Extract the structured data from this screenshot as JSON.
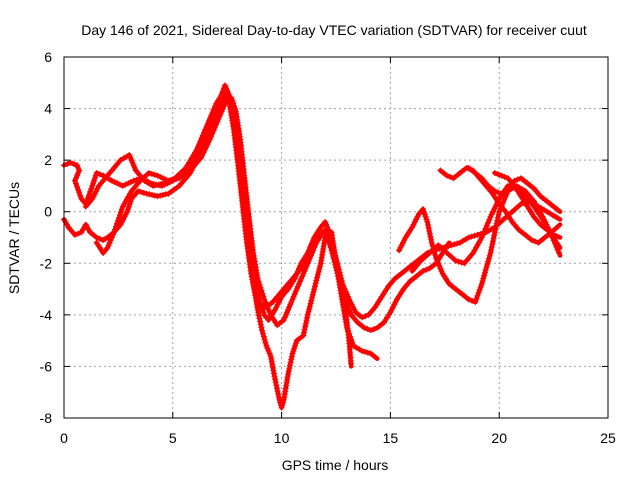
{
  "chart_data": {
    "type": "scatter",
    "title": "Day 146 of 2021, Sidereal Day-to-day VTEC variation (SDTVAR) for receiver cuut",
    "xlabel": "GPS time / hours",
    "ylabel": "SDTVAR / TECUs",
    "xlim": [
      0,
      25
    ],
    "ylim": [
      -8,
      6
    ],
    "xticks": [
      "0",
      "5",
      "10",
      "15",
      "20",
      "25"
    ],
    "yticks": [
      "-8",
      "-6",
      "-4",
      "-2",
      "0",
      "2",
      "4",
      "6"
    ],
    "grid": true,
    "legend": "none",
    "marker": "+",
    "color": "#ff0000",
    "series": [
      {
        "x": [
          0,
          0.3,
          0.6,
          0.7,
          0.5,
          0.8,
          1.0,
          1.3,
          1.5,
          1.8,
          2.2,
          2.7,
          3.2,
          3.6,
          4.0,
          4.5,
          5.0,
          5.5,
          6.0,
          6.5,
          7.0,
          7.4,
          7.7,
          7.9,
          8.1,
          8.3,
          8.5,
          8.7,
          8.9,
          9.1,
          9.3,
          9.5,
          9.7,
          9.9,
          10.0,
          10.1,
          10.3,
          10.5,
          10.7,
          11.0,
          11.2,
          11.5,
          11.8,
          12.0,
          12.3,
          12.6,
          12.9,
          13.1,
          13.2
        ],
        "y": [
          1.8,
          1.9,
          1.8,
          1.6,
          1.2,
          0.5,
          0.3,
          1.0,
          1.5,
          1.4,
          1.2,
          1.0,
          1.2,
          1.3,
          1.1,
          1.0,
          1.2,
          1.5,
          2.0,
          3.0,
          4.0,
          4.9,
          4.3,
          3.0,
          1.5,
          0.0,
          -1.5,
          -2.8,
          -3.8,
          -4.6,
          -5.2,
          -5.6,
          -6.5,
          -7.3,
          -7.6,
          -7.3,
          -6.3,
          -5.5,
          -5.0,
          -4.8,
          -4.0,
          -3.0,
          -2.0,
          -1.0,
          -0.8,
          -2.5,
          -3.5,
          -5.0,
          -6.0
        ]
      },
      {
        "x": [
          0,
          0.2,
          0.5,
          0.8,
          1.0,
          1.2,
          1.5,
          1.8,
          2.0,
          2.3,
          2.6,
          2.9,
          3.1,
          3.4,
          3.8,
          4.3,
          4.8,
          5.3,
          5.8,
          6.3,
          6.8,
          7.2,
          7.5,
          7.8,
          8.0,
          8.2,
          8.4,
          8.6,
          8.8,
          9.0,
          9.2,
          9.4,
          9.7,
          10.0,
          10.3,
          10.6,
          10.9,
          11.2,
          11.5,
          11.8,
          12.0,
          12.2,
          12.4,
          12.6,
          12.8,
          13.0,
          13.3,
          13.7,
          14.1,
          14.4
        ],
        "y": [
          -0.3,
          -0.6,
          -0.9,
          -0.8,
          -0.5,
          -0.8,
          -1.0,
          -1.1,
          -1.0,
          -0.8,
          -0.5,
          0.0,
          0.5,
          0.8,
          0.7,
          0.6,
          0.7,
          1.0,
          1.5,
          2.3,
          3.3,
          4.2,
          4.6,
          3.8,
          2.5,
          1.0,
          -0.5,
          -1.8,
          -2.8,
          -3.5,
          -4.0,
          -4.2,
          -3.8,
          -3.3,
          -3.0,
          -2.6,
          -2.0,
          -1.6,
          -1.0,
          -0.6,
          -0.4,
          -0.8,
          -1.5,
          -2.5,
          -3.5,
          -4.5,
          -5.2,
          -5.4,
          -5.5,
          -5.7
        ]
      },
      {
        "x": [
          1.0,
          1.3,
          1.6,
          1.9,
          2.2,
          2.6,
          3.0,
          3.3,
          3.7,
          4.1,
          4.6,
          5.1,
          5.6,
          6.1,
          6.6,
          7.0,
          7.3,
          7.6,
          7.8,
          8.0,
          8.2,
          8.4,
          8.6,
          8.8,
          9.0,
          9.3,
          9.6,
          9.9,
          10.2,
          10.5,
          10.8,
          11.1,
          11.4,
          11.7,
          12.0,
          12.3,
          12.6,
          12.9,
          13.2,
          13.5,
          13.8,
          14.1,
          14.4,
          14.7,
          15.0,
          15.3,
          15.6,
          15.9,
          16.2,
          16.5,
          16.8,
          17.1,
          17.4,
          17.7
        ],
        "y": [
          0.2,
          0.5,
          1.0,
          1.3,
          1.6,
          2.0,
          2.2,
          1.6,
          1.2,
          1.0,
          1.1,
          1.3,
          1.7,
          2.4,
          3.4,
          4.2,
          4.6,
          4.2,
          3.2,
          1.8,
          0.3,
          -1.2,
          -2.4,
          -3.2,
          -3.6,
          -3.7,
          -3.5,
          -3.2,
          -2.9,
          -2.6,
          -2.3,
          -2.0,
          -1.5,
          -1.0,
          -0.7,
          -1.5,
          -2.5,
          -3.4,
          -4.0,
          -4.3,
          -4.5,
          -4.6,
          -4.5,
          -4.3,
          -3.9,
          -3.4,
          -3.0,
          -2.7,
          -2.5,
          -2.3,
          -2.2,
          -2.0,
          -1.6,
          -1.2
        ]
      },
      {
        "x": [
          1.5,
          1.8,
          2.0,
          2.3,
          2.7,
          3.1,
          3.5,
          3.9,
          4.3,
          4.8,
          5.3,
          5.8,
          6.3,
          6.7,
          7.1,
          7.4,
          7.7,
          7.9,
          8.1,
          8.3,
          8.5,
          8.7,
          8.9,
          9.2,
          9.5,
          9.8,
          10.1,
          10.4,
          10.7,
          11.0,
          11.3,
          11.6,
          11.9,
          12.2,
          12.5,
          12.8,
          13.1,
          13.4,
          13.7,
          14.0,
          14.3,
          14.6,
          14.9,
          15.2,
          15.5,
          15.8,
          16.1,
          16.4,
          16.7,
          17.0,
          17.4,
          17.8,
          18.2,
          18.6,
          19.0,
          19.4,
          19.8,
          20.2,
          20.6,
          21.0,
          21.4,
          21.8,
          22.2,
          22.6,
          22.8
        ],
        "y": [
          -1.2,
          -1.6,
          -1.4,
          -0.8,
          0.2,
          0.8,
          1.2,
          1.5,
          1.4,
          1.2,
          1.3,
          1.6,
          2.1,
          2.8,
          3.6,
          4.2,
          4.4,
          3.9,
          2.8,
          1.3,
          -0.2,
          -1.6,
          -2.6,
          -3.4,
          -4.0,
          -4.4,
          -4.2,
          -3.6,
          -3.0,
          -2.4,
          -1.8,
          -1.2,
          -0.8,
          -1.0,
          -1.8,
          -2.8,
          -3.4,
          -3.9,
          -4.1,
          -4.0,
          -3.7,
          -3.3,
          -2.9,
          -2.6,
          -2.4,
          -2.2,
          -2.0,
          -1.8,
          -1.6,
          -1.5,
          -1.4,
          -1.3,
          -1.2,
          -1.0,
          -0.9,
          -0.8,
          -0.6,
          -0.3,
          0.0,
          0.3,
          0.4,
          0.2,
          0.0,
          -0.2,
          -0.3
        ]
      },
      {
        "x": [
          15.4,
          15.7,
          16.0,
          16.3,
          16.5,
          16.7,
          16.9,
          17.1,
          17.4,
          17.7,
          18.0,
          18.3,
          18.6,
          18.9,
          19.2,
          19.6,
          20.0,
          20.4,
          20.8,
          21.2,
          21.6,
          22.0,
          22.4,
          22.8
        ],
        "y": [
          -1.5,
          -1.0,
          -0.6,
          -0.1,
          0.1,
          -0.4,
          -1.2,
          -1.8,
          -2.4,
          -2.8,
          -3.0,
          -3.2,
          -3.4,
          -3.5,
          -2.8,
          -1.6,
          0.0,
          0.8,
          1.0,
          0.8,
          0.4,
          -0.2,
          -0.9,
          -1.7
        ]
      },
      {
        "x": [
          16.0,
          16.4,
          16.8,
          17.2,
          17.6,
          18.0,
          18.4,
          18.8,
          19.2,
          19.6,
          20.0,
          20.4,
          20.8,
          21.2,
          21.6,
          22.0,
          22.4,
          22.8
        ],
        "y": [
          -2.3,
          -1.9,
          -1.6,
          -1.3,
          -1.6,
          -1.9,
          -2.0,
          -1.6,
          -1.0,
          -0.2,
          0.5,
          1.0,
          0.9,
          0.6,
          0.2,
          -0.3,
          -0.9,
          -1.4
        ]
      },
      {
        "x": [
          17.3,
          17.6,
          17.9,
          18.2,
          18.5,
          18.8,
          19.1,
          19.4,
          19.7,
          20.0,
          20.3,
          20.6,
          20.9,
          21.2,
          21.5,
          21.8,
          22.1,
          22.4,
          22.8
        ],
        "y": [
          1.6,
          1.4,
          1.3,
          1.5,
          1.7,
          1.6,
          1.3,
          1.0,
          0.7,
          0.3,
          0.0,
          -0.4,
          -0.7,
          -0.9,
          -1.1,
          -1.2,
          -1.0,
          -0.8,
          -0.5
        ]
      },
      {
        "x": [
          18.6,
          18.9,
          19.2,
          19.5,
          19.8,
          20.1,
          20.4,
          20.7,
          21.0,
          21.3,
          21.6,
          21.9,
          22.2,
          22.5,
          22.8
        ],
        "y": [
          1.7,
          1.5,
          1.3,
          1.0,
          0.8,
          0.7,
          0.9,
          1.2,
          1.3,
          1.1,
          0.9,
          0.6,
          0.4,
          0.2,
          0.0
        ]
      },
      {
        "x": [
          19.8,
          20.1,
          20.4,
          20.7,
          21.0,
          21.3,
          21.6,
          21.9,
          22.2,
          22.5,
          22.8
        ],
        "y": [
          1.5,
          1.4,
          1.3,
          1.0,
          0.6,
          0.2,
          -0.2,
          -0.5,
          -0.7,
          -0.9,
          -1.0
        ]
      }
    ]
  }
}
